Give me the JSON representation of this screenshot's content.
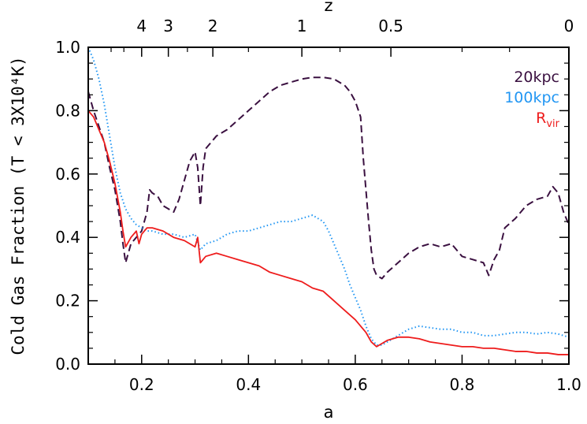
{
  "chart_data": {
    "type": "line",
    "xlabel": "a",
    "ylabel": "Cold Gas Fraction (T < 3X10⁴K)",
    "top_axis_label": "z",
    "xlim": [
      0.1,
      1.0
    ],
    "ylim": [
      0.0,
      1.0
    ],
    "x_ticks": [
      0.2,
      0.4,
      0.6,
      0.8,
      1.0
    ],
    "x_tick_labels": [
      "0.2",
      "0.4",
      "0.6",
      "0.8",
      "1.0"
    ],
    "y_ticks": [
      0.0,
      0.2,
      0.4,
      0.6,
      0.8,
      1.0
    ],
    "y_tick_labels": [
      "0.0",
      "0.2",
      "0.4",
      "0.6",
      "0.8",
      "1.0"
    ],
    "top_ticks": [
      {
        "label": "4",
        "a": 0.2
      },
      {
        "label": "3",
        "a": 0.25
      },
      {
        "label": "2",
        "a": 0.3333
      },
      {
        "label": "1",
        "a": 0.5
      },
      {
        "label": "0.5",
        "a": 0.6667
      },
      {
        "label": "0",
        "a": 1.0
      }
    ],
    "legend_position": "top-right",
    "series": [
      {
        "name": "20kpc",
        "legend_label": "20kpc",
        "color": "#3a1040",
        "style": "dashed",
        "points": [
          [
            0.1,
            0.86
          ],
          [
            0.11,
            0.8
          ],
          [
            0.12,
            0.75
          ],
          [
            0.13,
            0.7
          ],
          [
            0.14,
            0.62
          ],
          [
            0.15,
            0.55
          ],
          [
            0.16,
            0.45
          ],
          [
            0.165,
            0.38
          ],
          [
            0.17,
            0.32
          ],
          [
            0.175,
            0.35
          ],
          [
            0.18,
            0.38
          ],
          [
            0.19,
            0.4
          ],
          [
            0.2,
            0.42
          ],
          [
            0.21,
            0.48
          ],
          [
            0.215,
            0.55
          ],
          [
            0.22,
            0.54
          ],
          [
            0.23,
            0.53
          ],
          [
            0.24,
            0.5
          ],
          [
            0.25,
            0.49
          ],
          [
            0.26,
            0.48
          ],
          [
            0.27,
            0.52
          ],
          [
            0.28,
            0.58
          ],
          [
            0.29,
            0.64
          ],
          [
            0.3,
            0.67
          ],
          [
            0.305,
            0.62
          ],
          [
            0.31,
            0.5
          ],
          [
            0.315,
            0.62
          ],
          [
            0.32,
            0.68
          ],
          [
            0.34,
            0.72
          ],
          [
            0.36,
            0.74
          ],
          [
            0.38,
            0.77
          ],
          [
            0.4,
            0.8
          ],
          [
            0.42,
            0.83
          ],
          [
            0.44,
            0.86
          ],
          [
            0.46,
            0.88
          ],
          [
            0.48,
            0.89
          ],
          [
            0.5,
            0.9
          ],
          [
            0.52,
            0.905
          ],
          [
            0.54,
            0.905
          ],
          [
            0.56,
            0.9
          ],
          [
            0.58,
            0.88
          ],
          [
            0.59,
            0.86
          ],
          [
            0.6,
            0.83
          ],
          [
            0.61,
            0.78
          ],
          [
            0.615,
            0.65
          ],
          [
            0.62,
            0.55
          ],
          [
            0.625,
            0.45
          ],
          [
            0.63,
            0.36
          ],
          [
            0.635,
            0.3
          ],
          [
            0.64,
            0.28
          ],
          [
            0.65,
            0.27
          ],
          [
            0.66,
            0.29
          ],
          [
            0.68,
            0.32
          ],
          [
            0.7,
            0.35
          ],
          [
            0.72,
            0.37
          ],
          [
            0.74,
            0.38
          ],
          [
            0.76,
            0.37
          ],
          [
            0.78,
            0.38
          ],
          [
            0.8,
            0.34
          ],
          [
            0.82,
            0.33
          ],
          [
            0.84,
            0.32
          ],
          [
            0.85,
            0.28
          ],
          [
            0.86,
            0.33
          ],
          [
            0.87,
            0.36
          ],
          [
            0.88,
            0.43
          ],
          [
            0.9,
            0.46
          ],
          [
            0.92,
            0.5
          ],
          [
            0.94,
            0.52
          ],
          [
            0.96,
            0.53
          ],
          [
            0.97,
            0.56
          ],
          [
            0.98,
            0.54
          ],
          [
            0.99,
            0.48
          ],
          [
            1.0,
            0.44
          ]
        ]
      },
      {
        "name": "100kpc",
        "legend_label": "100kpc",
        "color": "#2196f3",
        "style": "dotted",
        "points": [
          [
            0.1,
            1.0
          ],
          [
            0.11,
            0.96
          ],
          [
            0.12,
            0.9
          ],
          [
            0.13,
            0.82
          ],
          [
            0.14,
            0.72
          ],
          [
            0.15,
            0.62
          ],
          [
            0.16,
            0.54
          ],
          [
            0.17,
            0.49
          ],
          [
            0.18,
            0.46
          ],
          [
            0.19,
            0.44
          ],
          [
            0.2,
            0.43
          ],
          [
            0.21,
            0.42
          ],
          [
            0.22,
            0.42
          ],
          [
            0.24,
            0.41
          ],
          [
            0.26,
            0.41
          ],
          [
            0.28,
            0.4
          ],
          [
            0.3,
            0.41
          ],
          [
            0.31,
            0.36
          ],
          [
            0.32,
            0.38
          ],
          [
            0.34,
            0.39
          ],
          [
            0.36,
            0.41
          ],
          [
            0.38,
            0.42
          ],
          [
            0.4,
            0.42
          ],
          [
            0.42,
            0.43
          ],
          [
            0.44,
            0.44
          ],
          [
            0.46,
            0.45
          ],
          [
            0.48,
            0.45
          ],
          [
            0.5,
            0.46
          ],
          [
            0.52,
            0.47
          ],
          [
            0.54,
            0.45
          ],
          [
            0.55,
            0.42
          ],
          [
            0.56,
            0.38
          ],
          [
            0.57,
            0.34
          ],
          [
            0.58,
            0.3
          ],
          [
            0.59,
            0.25
          ],
          [
            0.6,
            0.21
          ],
          [
            0.61,
            0.17
          ],
          [
            0.62,
            0.12
          ],
          [
            0.63,
            0.08
          ],
          [
            0.64,
            0.06
          ],
          [
            0.65,
            0.06
          ],
          [
            0.66,
            0.07
          ],
          [
            0.68,
            0.09
          ],
          [
            0.7,
            0.11
          ],
          [
            0.72,
            0.12
          ],
          [
            0.74,
            0.115
          ],
          [
            0.76,
            0.11
          ],
          [
            0.78,
            0.11
          ],
          [
            0.8,
            0.1
          ],
          [
            0.82,
            0.1
          ],
          [
            0.84,
            0.09
          ],
          [
            0.86,
            0.09
          ],
          [
            0.88,
            0.095
          ],
          [
            0.9,
            0.1
          ],
          [
            0.92,
            0.1
          ],
          [
            0.94,
            0.095
          ],
          [
            0.96,
            0.1
          ],
          [
            0.98,
            0.095
          ],
          [
            1.0,
            0.085
          ]
        ]
      },
      {
        "name": "Rvir",
        "legend_label": "R",
        "legend_sub": "vir",
        "color": "#ee1c1c",
        "style": "solid",
        "points": [
          [
            0.1,
            0.8
          ],
          [
            0.11,
            0.78
          ],
          [
            0.12,
            0.74
          ],
          [
            0.13,
            0.7
          ],
          [
            0.14,
            0.64
          ],
          [
            0.15,
            0.57
          ],
          [
            0.16,
            0.48
          ],
          [
            0.165,
            0.42
          ],
          [
            0.17,
            0.37
          ],
          [
            0.18,
            0.4
          ],
          [
            0.19,
            0.42
          ],
          [
            0.195,
            0.38
          ],
          [
            0.2,
            0.41
          ],
          [
            0.21,
            0.43
          ],
          [
            0.22,
            0.43
          ],
          [
            0.24,
            0.42
          ],
          [
            0.26,
            0.4
          ],
          [
            0.28,
            0.39
          ],
          [
            0.29,
            0.38
          ],
          [
            0.3,
            0.37
          ],
          [
            0.305,
            0.4
          ],
          [
            0.31,
            0.32
          ],
          [
            0.32,
            0.34
          ],
          [
            0.34,
            0.35
          ],
          [
            0.36,
            0.34
          ],
          [
            0.38,
            0.33
          ],
          [
            0.4,
            0.32
          ],
          [
            0.42,
            0.31
          ],
          [
            0.44,
            0.29
          ],
          [
            0.46,
            0.28
          ],
          [
            0.48,
            0.27
          ],
          [
            0.5,
            0.26
          ],
          [
            0.52,
            0.24
          ],
          [
            0.54,
            0.23
          ],
          [
            0.56,
            0.2
          ],
          [
            0.58,
            0.17
          ],
          [
            0.6,
            0.14
          ],
          [
            0.62,
            0.1
          ],
          [
            0.63,
            0.07
          ],
          [
            0.64,
            0.055
          ],
          [
            0.65,
            0.065
          ],
          [
            0.66,
            0.075
          ],
          [
            0.68,
            0.085
          ],
          [
            0.7,
            0.085
          ],
          [
            0.72,
            0.08
          ],
          [
            0.74,
            0.07
          ],
          [
            0.76,
            0.065
          ],
          [
            0.78,
            0.06
          ],
          [
            0.8,
            0.055
          ],
          [
            0.82,
            0.055
          ],
          [
            0.84,
            0.05
          ],
          [
            0.86,
            0.05
          ],
          [
            0.88,
            0.045
          ],
          [
            0.9,
            0.04
          ],
          [
            0.92,
            0.04
          ],
          [
            0.94,
            0.035
          ],
          [
            0.96,
            0.035
          ],
          [
            0.98,
            0.03
          ],
          [
            1.0,
            0.03
          ]
        ]
      }
    ]
  }
}
